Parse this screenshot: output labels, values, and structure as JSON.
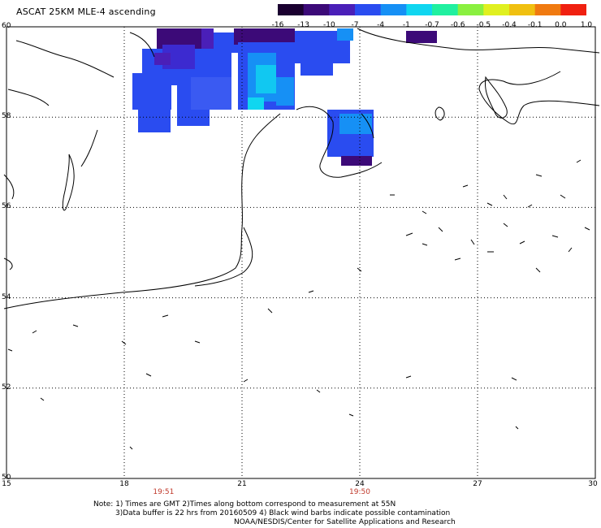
{
  "title": "ASCAT 25KM MLE-4 ascending",
  "colorbar": {
    "ticks": [
      "-16",
      "-13",
      "-10",
      "-7",
      "-4",
      "-1",
      "-0.7",
      "-0.6",
      "-0.5",
      "-0.4",
      "-0.1",
      "0.0",
      "1.0"
    ],
    "colors": [
      "#1a0030",
      "#3c0a78",
      "#4a1fb8",
      "#2a4cf0",
      "#1690f5",
      "#10d6f0",
      "#20f0a0",
      "#8af040",
      "#e0f020",
      "#f0c010",
      "#f07a10",
      "#f02010"
    ]
  },
  "map": {
    "lon_ticks": [
      "15",
      "18",
      "21",
      "24",
      "27",
      "30"
    ],
    "lat_ticks": [
      "60",
      "58",
      "56",
      "54",
      "52",
      "50"
    ],
    "lon_range": [
      15,
      30
    ],
    "lat_range": [
      50,
      60
    ],
    "time_labels": [
      {
        "lon": 19,
        "text": "19:51"
      },
      {
        "lon": 24,
        "text": "19:50"
      }
    ]
  },
  "notes": {
    "line1": "Note: 1) Times are GMT 2)Times along bottom correspond to measurement at 55N",
    "line2": "3)Data buffer is 22 hrs from 20160509 4) Black wind barbs indicate possible contamination",
    "line3": "NOAA/NESDIS/Center for Satellite Applications and Research"
  }
}
